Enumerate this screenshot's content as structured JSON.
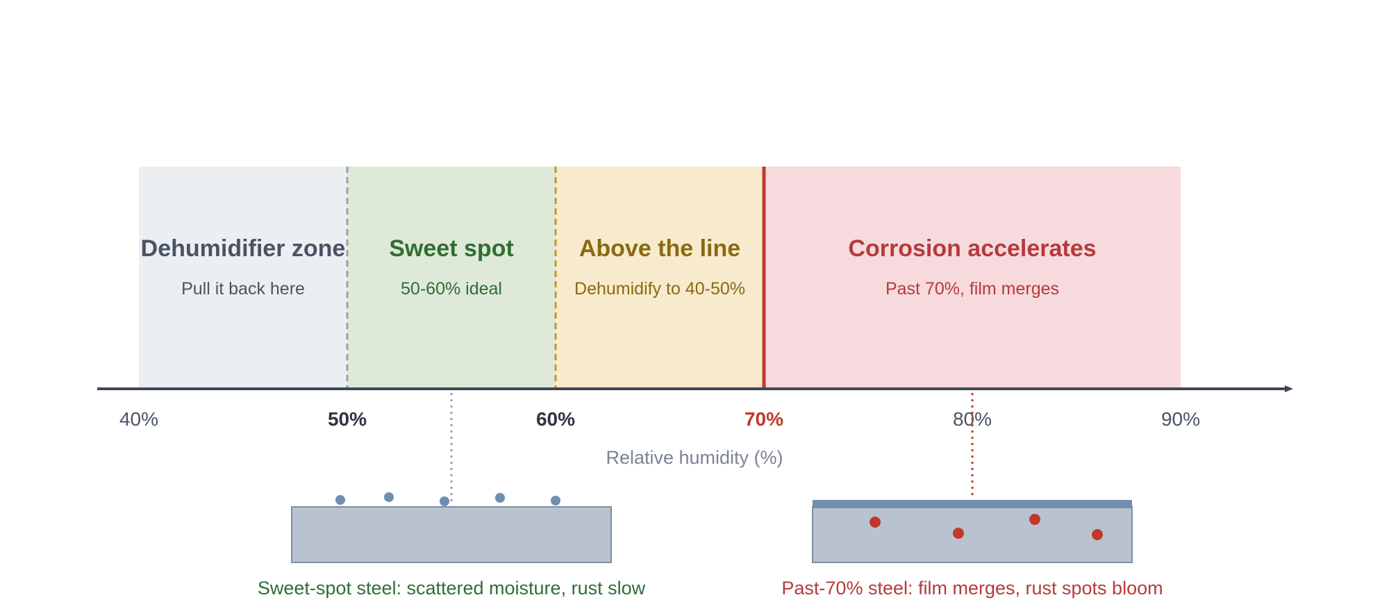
{
  "colors": {
    "zone_gray_fill": "#eceff2",
    "zone_green_fill": "#dfe9d8",
    "zone_yellow_fill": "#f7eacd",
    "zone_red_fill": "#f6dade",
    "gray_text": "#4a5365",
    "green_text": "#2f6e35",
    "yellow_text": "#8a6912",
    "red_text": "#b63a3a",
    "axis": "#3f4658",
    "dashed_gray": "#9aa1aa",
    "dashed_gold": "#c4962c",
    "red_line": "#c0392b",
    "steel_fill": "#b8c3cf",
    "steel_stroke": "#7d8fa6",
    "droplet": "#6f8eb0",
    "film": "#6f8eb0",
    "rust": "#c0392b",
    "axis_title": "#7b8391"
  },
  "zones": [
    {
      "key": "gray",
      "title": "Dehumidifier zone",
      "subtitle": "Pull it back here"
    },
    {
      "key": "green",
      "title": "Sweet spot",
      "subtitle": "50-60% ideal"
    },
    {
      "key": "yellow",
      "title": "Above the line",
      "subtitle": "Dehumidify to 40-50%"
    },
    {
      "key": "red",
      "title": "Corrosion accelerates",
      "subtitle": "Past 70%, film merges"
    }
  ],
  "axis": {
    "title": "Relative humidity (%)",
    "ticks": [
      {
        "label": "40%",
        "style": "normal"
      },
      {
        "label": "50%",
        "style": "bold"
      },
      {
        "label": "60%",
        "style": "bold"
      },
      {
        "label": "70%",
        "style": "bold-red"
      },
      {
        "label": "80%",
        "style": "normal"
      },
      {
        "label": "90%",
        "style": "normal"
      }
    ]
  },
  "illustrations": {
    "sweet_spot_caption": "Sweet-spot steel: scattered moisture, rust slow",
    "past_70_caption": "Past-70% steel: film merges, rust spots bloom"
  }
}
